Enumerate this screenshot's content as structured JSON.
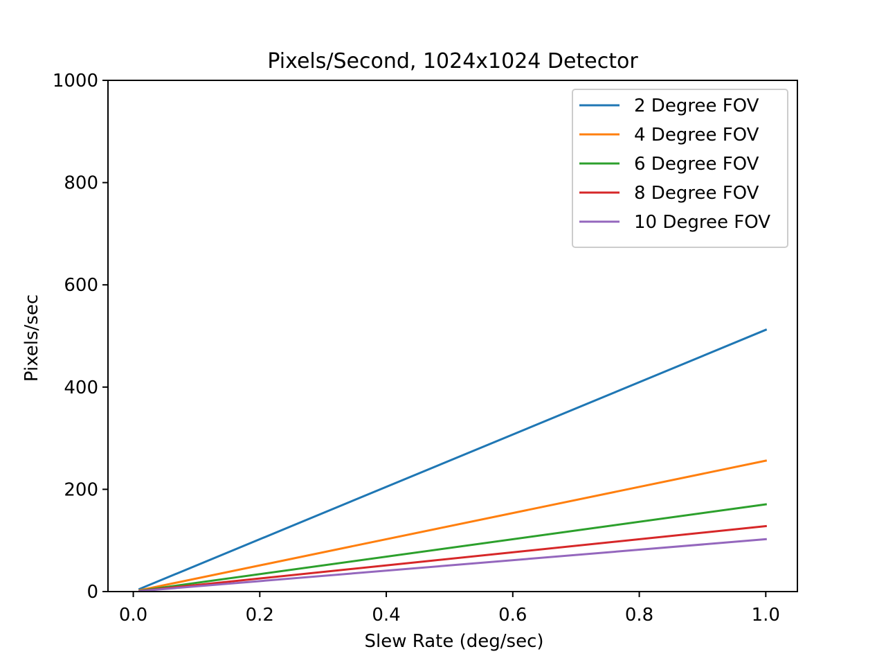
{
  "chart_data": {
    "type": "line",
    "title": "Pixels/Second, 1024x1024 Detector",
    "xlabel": "Slew Rate (deg/sec)",
    "ylabel": "Pixels/sec",
    "xlim": [
      -0.04,
      1.05
    ],
    "ylim": [
      0,
      1000
    ],
    "x_ticks": [
      "0.0",
      "0.2",
      "0.4",
      "0.6",
      "0.8",
      "1.0"
    ],
    "y_ticks": [
      "0",
      "200",
      "400",
      "600",
      "800",
      "1000"
    ],
    "grid": false,
    "legend_position": "top-right",
    "series": [
      {
        "name": "2 Degree FOV",
        "color": "#1f77b4",
        "x": [
          0.01,
          1.0
        ],
        "y": [
          5.12,
          512
        ]
      },
      {
        "name": "4 Degree FOV",
        "color": "#ff7f0e",
        "x": [
          0.01,
          1.0
        ],
        "y": [
          2.56,
          256
        ]
      },
      {
        "name": "6 Degree FOV",
        "color": "#2ca02c",
        "x": [
          0.01,
          1.0
        ],
        "y": [
          1.71,
          170.67
        ]
      },
      {
        "name": "8 Degree FOV",
        "color": "#d62728",
        "x": [
          0.01,
          1.0
        ],
        "y": [
          1.28,
          128
        ]
      },
      {
        "name": "10 Degree FOV",
        "color": "#9467bd",
        "x": [
          0.01,
          1.0
        ],
        "y": [
          1.02,
          102.4
        ]
      }
    ]
  }
}
